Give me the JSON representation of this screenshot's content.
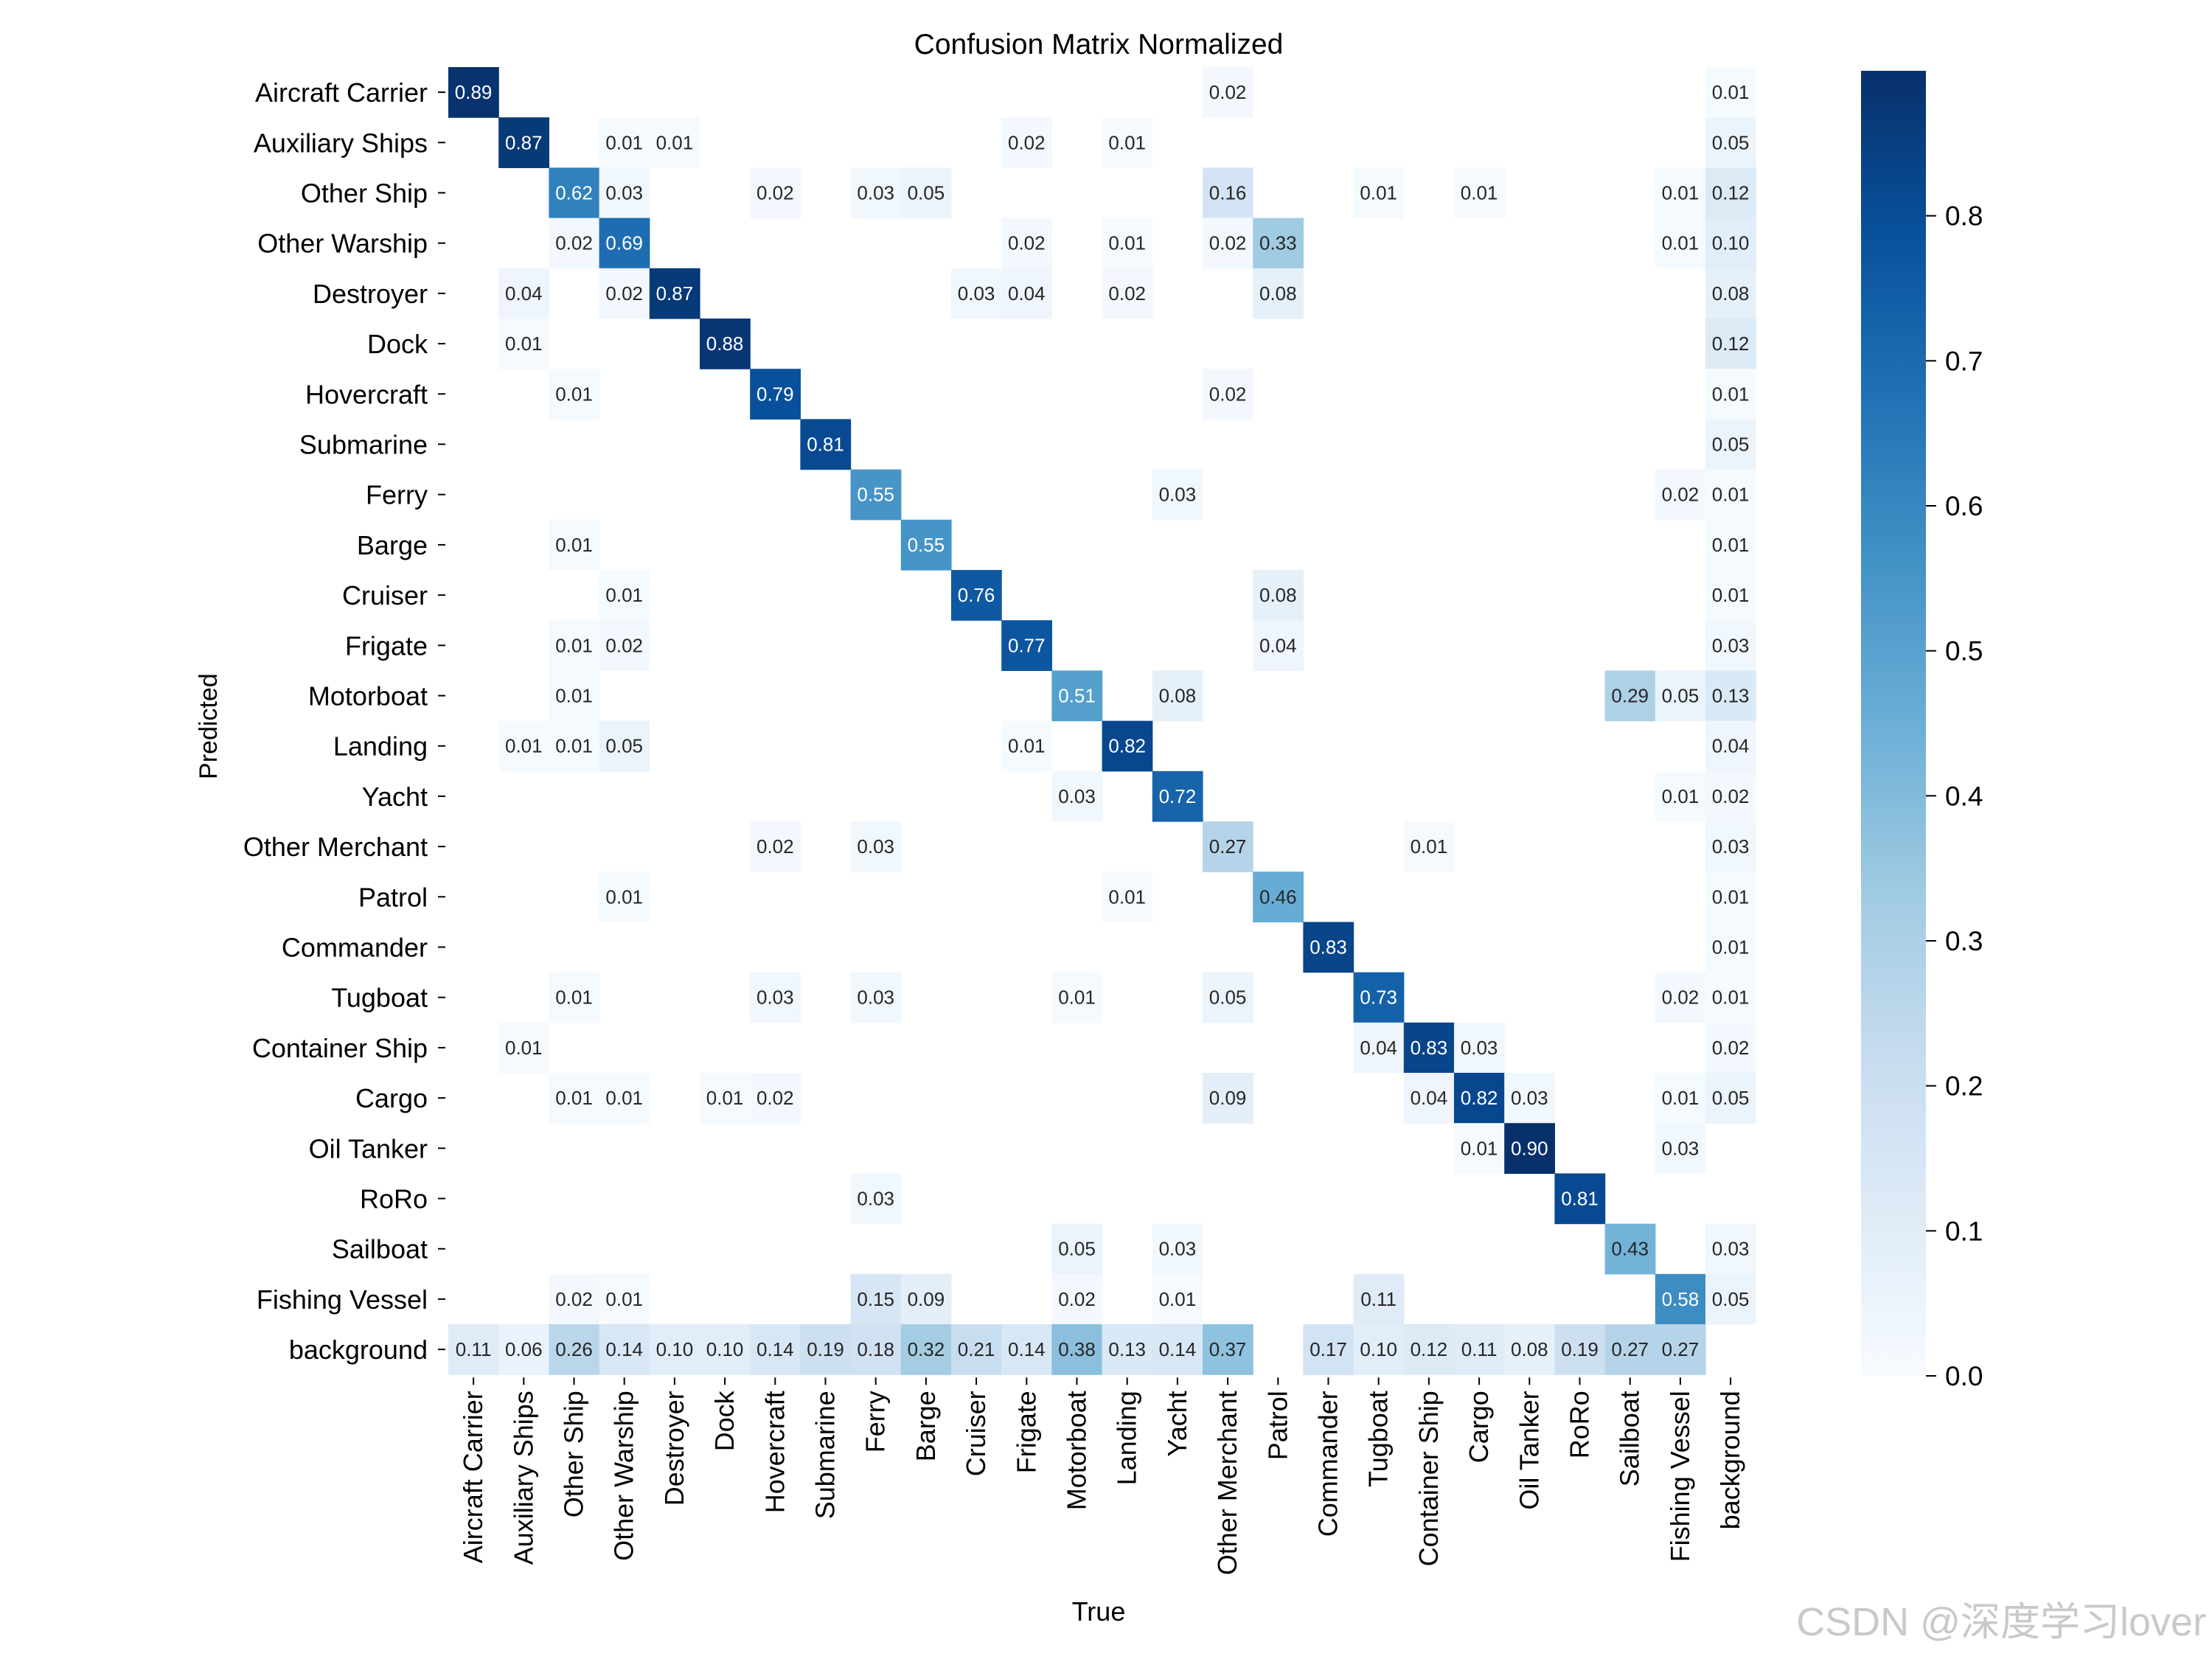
{
  "chart_data": {
    "type": "heatmap",
    "title": "Confusion Matrix Normalized",
    "xlabel": "True",
    "ylabel": "Predicted",
    "rows": [
      "Aircraft Carrier",
      "Auxiliary Ships",
      "Other Ship",
      "Other Warship",
      "Destroyer",
      "Dock",
      "Hovercraft",
      "Submarine",
      "Ferry",
      "Barge",
      "Cruiser",
      "Frigate",
      "Motorboat",
      "Landing",
      "Yacht",
      "Other Merchant",
      "Patrol",
      "Commander",
      "Tugboat",
      "Container Ship",
      "Cargo",
      "Oil Tanker",
      "RoRo",
      "Sailboat",
      "Fishing Vessel",
      "background"
    ],
    "columns": [
      "Aircraft Carrier",
      "Auxiliary Ships",
      "Other Ship",
      "Other Warship",
      "Destroyer",
      "Dock",
      "Hovercraft",
      "Submarine",
      "Ferry",
      "Barge",
      "Cruiser",
      "Frigate",
      "Motorboat",
      "Landing",
      "Yacht",
      "Other Merchant",
      "Patrol",
      "Commander",
      "Tugboat",
      "Container Ship",
      "Cargo",
      "Oil Tanker",
      "RoRo",
      "Sailboat",
      "Fishing Vessel",
      "background"
    ],
    "cells": [
      [
        0,
        0,
        0.89
      ],
      [
        0,
        15,
        0.02
      ],
      [
        0,
        25,
        0.01
      ],
      [
        1,
        1,
        0.87
      ],
      [
        1,
        3,
        0.01
      ],
      [
        1,
        4,
        0.01
      ],
      [
        1,
        11,
        0.02
      ],
      [
        1,
        13,
        0.01
      ],
      [
        1,
        25,
        0.05
      ],
      [
        2,
        2,
        0.62
      ],
      [
        2,
        3,
        0.03
      ],
      [
        2,
        6,
        0.02
      ],
      [
        2,
        8,
        0.03
      ],
      [
        2,
        9,
        0.05
      ],
      [
        2,
        15,
        0.16
      ],
      [
        2,
        18,
        0.01
      ],
      [
        2,
        20,
        0.01
      ],
      [
        2,
        24,
        0.01
      ],
      [
        2,
        25,
        0.12
      ],
      [
        3,
        2,
        0.02
      ],
      [
        3,
        3,
        0.69
      ],
      [
        3,
        11,
        0.02
      ],
      [
        3,
        13,
        0.01
      ],
      [
        3,
        15,
        0.02
      ],
      [
        3,
        16,
        0.33
      ],
      [
        3,
        24,
        0.01
      ],
      [
        3,
        25,
        0.1
      ],
      [
        4,
        1,
        0.04
      ],
      [
        4,
        3,
        0.02
      ],
      [
        4,
        4,
        0.87
      ],
      [
        4,
        10,
        0.03
      ],
      [
        4,
        11,
        0.04
      ],
      [
        4,
        13,
        0.02
      ],
      [
        4,
        16,
        0.08
      ],
      [
        4,
        25,
        0.08
      ],
      [
        5,
        1,
        0.01
      ],
      [
        5,
        5,
        0.88
      ],
      [
        5,
        25,
        0.12
      ],
      [
        6,
        2,
        0.01
      ],
      [
        6,
        6,
        0.79
      ],
      [
        6,
        15,
        0.02
      ],
      [
        6,
        25,
        0.01
      ],
      [
        7,
        7,
        0.81
      ],
      [
        7,
        25,
        0.05
      ],
      [
        8,
        8,
        0.55
      ],
      [
        8,
        14,
        0.03
      ],
      [
        8,
        24,
        0.02
      ],
      [
        8,
        25,
        0.01
      ],
      [
        9,
        2,
        0.01
      ],
      [
        9,
        9,
        0.55
      ],
      [
        9,
        25,
        0.01
      ],
      [
        10,
        3,
        0.01
      ],
      [
        10,
        10,
        0.76
      ],
      [
        10,
        16,
        0.08
      ],
      [
        10,
        25,
        0.01
      ],
      [
        11,
        2,
        0.01
      ],
      [
        11,
        3,
        0.02
      ],
      [
        11,
        11,
        0.77
      ],
      [
        11,
        16,
        0.04
      ],
      [
        11,
        25,
        0.03
      ],
      [
        12,
        2,
        0.01
      ],
      [
        12,
        12,
        0.51
      ],
      [
        12,
        14,
        0.08
      ],
      [
        12,
        23,
        0.29
      ],
      [
        12,
        24,
        0.05
      ],
      [
        12,
        25,
        0.13
      ],
      [
        13,
        1,
        0.01
      ],
      [
        13,
        2,
        0.01
      ],
      [
        13,
        3,
        0.05
      ],
      [
        13,
        11,
        0.01
      ],
      [
        13,
        13,
        0.82
      ],
      [
        13,
        25,
        0.04
      ],
      [
        14,
        12,
        0.03
      ],
      [
        14,
        14,
        0.72
      ],
      [
        14,
        24,
        0.01
      ],
      [
        14,
        25,
        0.02
      ],
      [
        15,
        6,
        0.02
      ],
      [
        15,
        8,
        0.03
      ],
      [
        15,
        15,
        0.27
      ],
      [
        15,
        19,
        0.01
      ],
      [
        15,
        25,
        0.03
      ],
      [
        16,
        3,
        0.01
      ],
      [
        16,
        13,
        0.01
      ],
      [
        16,
        16,
        0.46
      ],
      [
        16,
        25,
        0.01
      ],
      [
        17,
        17,
        0.83
      ],
      [
        17,
        25,
        0.01
      ],
      [
        18,
        2,
        0.01
      ],
      [
        18,
        6,
        0.03
      ],
      [
        18,
        8,
        0.03
      ],
      [
        18,
        12,
        0.01
      ],
      [
        18,
        15,
        0.05
      ],
      [
        18,
        18,
        0.73
      ],
      [
        18,
        24,
        0.02
      ],
      [
        18,
        25,
        0.01
      ],
      [
        19,
        1,
        0.01
      ],
      [
        19,
        18,
        0.04
      ],
      [
        19,
        19,
        0.83
      ],
      [
        19,
        20,
        0.03
      ],
      [
        19,
        25,
        0.02
      ],
      [
        20,
        2,
        0.01
      ],
      [
        20,
        3,
        0.01
      ],
      [
        20,
        5,
        0.01
      ],
      [
        20,
        6,
        0.02
      ],
      [
        20,
        15,
        0.09
      ],
      [
        20,
        19,
        0.04
      ],
      [
        20,
        20,
        0.82
      ],
      [
        20,
        21,
        0.03
      ],
      [
        20,
        24,
        0.01
      ],
      [
        20,
        25,
        0.05
      ],
      [
        21,
        20,
        0.01
      ],
      [
        21,
        21,
        0.9
      ],
      [
        21,
        24,
        0.03
      ],
      [
        22,
        8,
        0.03
      ],
      [
        22,
        22,
        0.81
      ],
      [
        23,
        12,
        0.05
      ],
      [
        23,
        14,
        0.03
      ],
      [
        23,
        23,
        0.43
      ],
      [
        23,
        25,
        0.03
      ],
      [
        24,
        2,
        0.02
      ],
      [
        24,
        3,
        0.01
      ],
      [
        24,
        8,
        0.15
      ],
      [
        24,
        9,
        0.09
      ],
      [
        24,
        12,
        0.02
      ],
      [
        24,
        14,
        0.01
      ],
      [
        24,
        18,
        0.11
      ],
      [
        24,
        24,
        0.58
      ],
      [
        24,
        25,
        0.05
      ],
      [
        25,
        0,
        0.11
      ],
      [
        25,
        1,
        0.06
      ],
      [
        25,
        2,
        0.26
      ],
      [
        25,
        3,
        0.14
      ],
      [
        25,
        4,
        0.1
      ],
      [
        25,
        5,
        0.1
      ],
      [
        25,
        6,
        0.14
      ],
      [
        25,
        7,
        0.19
      ],
      [
        25,
        8,
        0.18
      ],
      [
        25,
        9,
        0.32
      ],
      [
        25,
        10,
        0.21
      ],
      [
        25,
        11,
        0.14
      ],
      [
        25,
        12,
        0.38
      ],
      [
        25,
        13,
        0.13
      ],
      [
        25,
        14,
        0.14
      ],
      [
        25,
        15,
        0.37
      ],
      [
        25,
        17,
        0.17
      ],
      [
        25,
        18,
        0.1
      ],
      [
        25,
        19,
        0.12
      ],
      [
        25,
        20,
        0.11
      ],
      [
        25,
        21,
        0.08
      ],
      [
        25,
        22,
        0.19
      ],
      [
        25,
        23,
        0.27
      ],
      [
        25,
        24,
        0.27
      ]
    ],
    "colorbar": {
      "min": 0.0,
      "max": 0.9,
      "ticks": [
        "0.0",
        "0.1",
        "0.2",
        "0.3",
        "0.4",
        "0.5",
        "0.6",
        "0.7",
        "0.8"
      ],
      "colormap": "Blues",
      "colors": [
        "#f7fbff",
        "#deebf7",
        "#c6dbef",
        "#9ecae1",
        "#6baed6",
        "#4292c6",
        "#2171b5",
        "#08519c",
        "#08306b"
      ]
    },
    "grid": false
  },
  "watermark": "CSDN @深度学习lover"
}
